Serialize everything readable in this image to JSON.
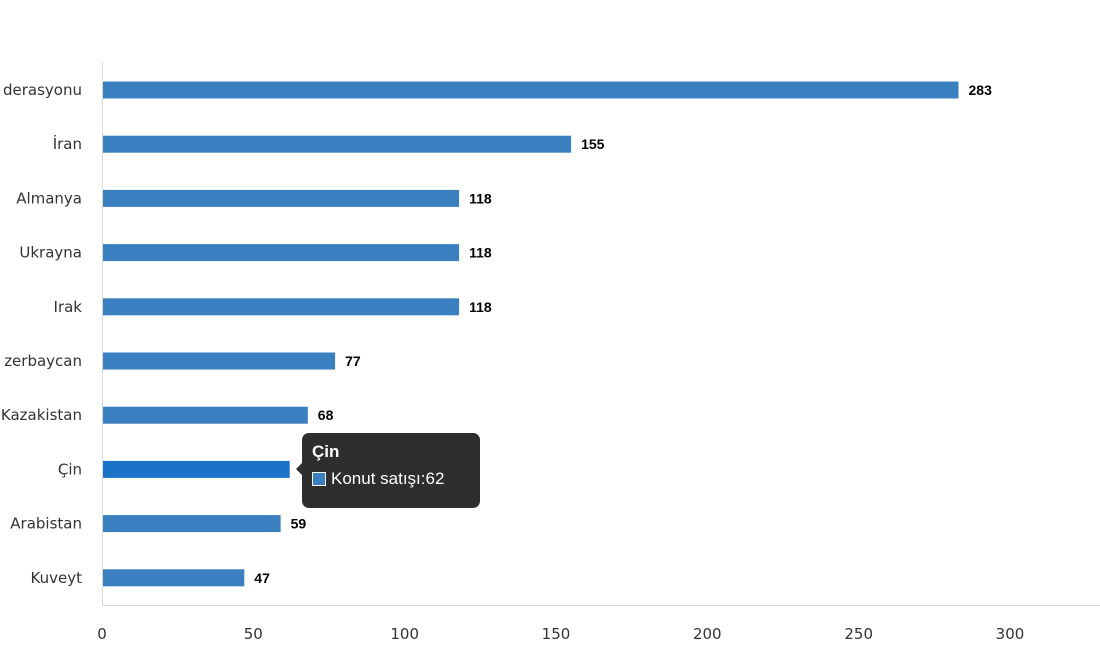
{
  "colors": {
    "bar": "#3a7fbf",
    "bar_highlight": "#1a73c8",
    "axis": "#d9d9d9",
    "tooltip_bg": "#2e2e2e"
  },
  "chart_data": {
    "type": "bar",
    "orientation": "horizontal",
    "title": "",
    "xlabel": "",
    "ylabel": "",
    "xlim": [
      0,
      330
    ],
    "xticks": [
      0,
      50,
      100,
      150,
      200,
      250,
      300
    ],
    "grid": false,
    "legend": "none",
    "categories": [
      "derasyonu",
      "İran",
      "Almanya",
      "Ukrayna",
      "Irak",
      "zerbaycan",
      "Kazakistan",
      "Çin",
      "Arabistan",
      "Kuveyt"
    ],
    "series": [
      {
        "name": "Konut satışı",
        "values": [
          283,
          155,
          118,
          118,
          118,
          77,
          68,
          62,
          59,
          47
        ]
      }
    ],
    "highlighted_category": "Çin"
  },
  "tooltip": {
    "title": "Çin",
    "series_label": "Konut satışı",
    "value_text": "62",
    "separator": ": "
  }
}
